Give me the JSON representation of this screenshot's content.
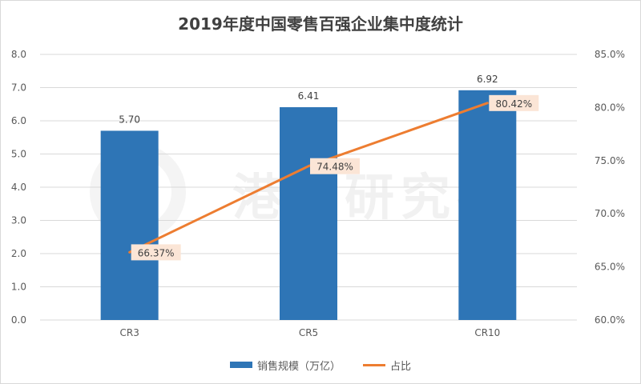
{
  "chart_data": {
    "title": "2019年度中国零售百强企业集中度统计",
    "watermark": "港股研究社",
    "categories": [
      "CR3",
      "CR5",
      "CR10"
    ],
    "series": [
      {
        "name": "销售规模（万亿）",
        "type": "bar",
        "axis": "left",
        "values": [
          5.7,
          6.41,
          6.92
        ],
        "labels": [
          "5.70",
          "6.41",
          "6.92"
        ],
        "color": "#2e75b6"
      },
      {
        "name": "占比",
        "type": "line",
        "axis": "right",
        "values": [
          66.37,
          74.48,
          80.42
        ],
        "labels": [
          "66.37%",
          "74.48%",
          "80.42%"
        ],
        "color": "#ed7d31"
      }
    ],
    "y_left": {
      "min": 0,
      "max": 8,
      "ticks": [
        "0.0",
        "1.0",
        "2.0",
        "3.0",
        "4.0",
        "5.0",
        "6.0",
        "7.0",
        "8.0"
      ]
    },
    "y_right": {
      "min": 60,
      "max": 85,
      "ticks": [
        "60.0%",
        "65.0%",
        "70.0%",
        "75.0%",
        "80.0%",
        "85.0%"
      ]
    },
    "grid": true,
    "legend": "bottom"
  }
}
